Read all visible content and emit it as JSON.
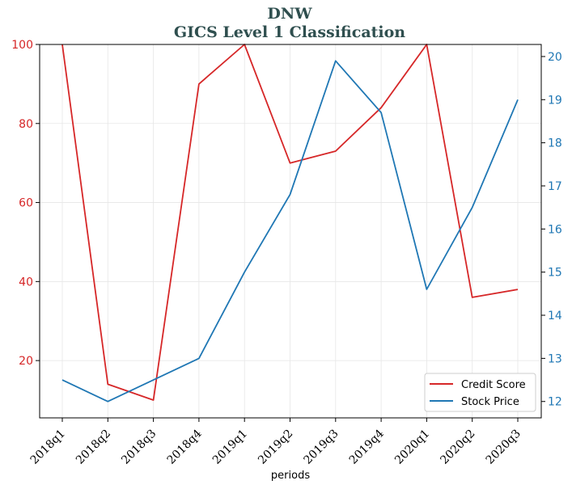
{
  "chart_data": {
    "type": "line",
    "title": "DNW",
    "subtitle": "GICS Level 1 Classification",
    "xlabel": "periods",
    "categories": [
      "2018q1",
      "2018q2",
      "2018q3",
      "2018q4",
      "2019q1",
      "2019q2",
      "2019q3",
      "2019q4",
      "2020q1",
      "2020q2",
      "2020q3"
    ],
    "series": [
      {
        "name": "Credit Score",
        "axis": "left",
        "color": "#d62728",
        "values": [
          100,
          14,
          10,
          90,
          100,
          70,
          73,
          84,
          100,
          36,
          38
        ]
      },
      {
        "name": "Stock Price",
        "axis": "right",
        "color": "#1f77b4",
        "values": [
          12.5,
          12.0,
          12.5,
          13.0,
          15.0,
          16.8,
          19.9,
          18.7,
          14.6,
          16.5,
          19.0
        ]
      }
    ],
    "y_left": {
      "ylim": [
        5.5,
        100
      ],
      "ticks": [
        20,
        40,
        60,
        80,
        100
      ],
      "color": "#d62728"
    },
    "y_right": {
      "ylim": [
        11.62,
        20.28
      ],
      "ticks": [
        12,
        13,
        14,
        15,
        16,
        17,
        18,
        19,
        20
      ],
      "color": "#1f77b4"
    },
    "grid": true,
    "legend": {
      "placement": "bottom-right",
      "entries": [
        "Credit Score",
        "Stock Price"
      ]
    }
  }
}
